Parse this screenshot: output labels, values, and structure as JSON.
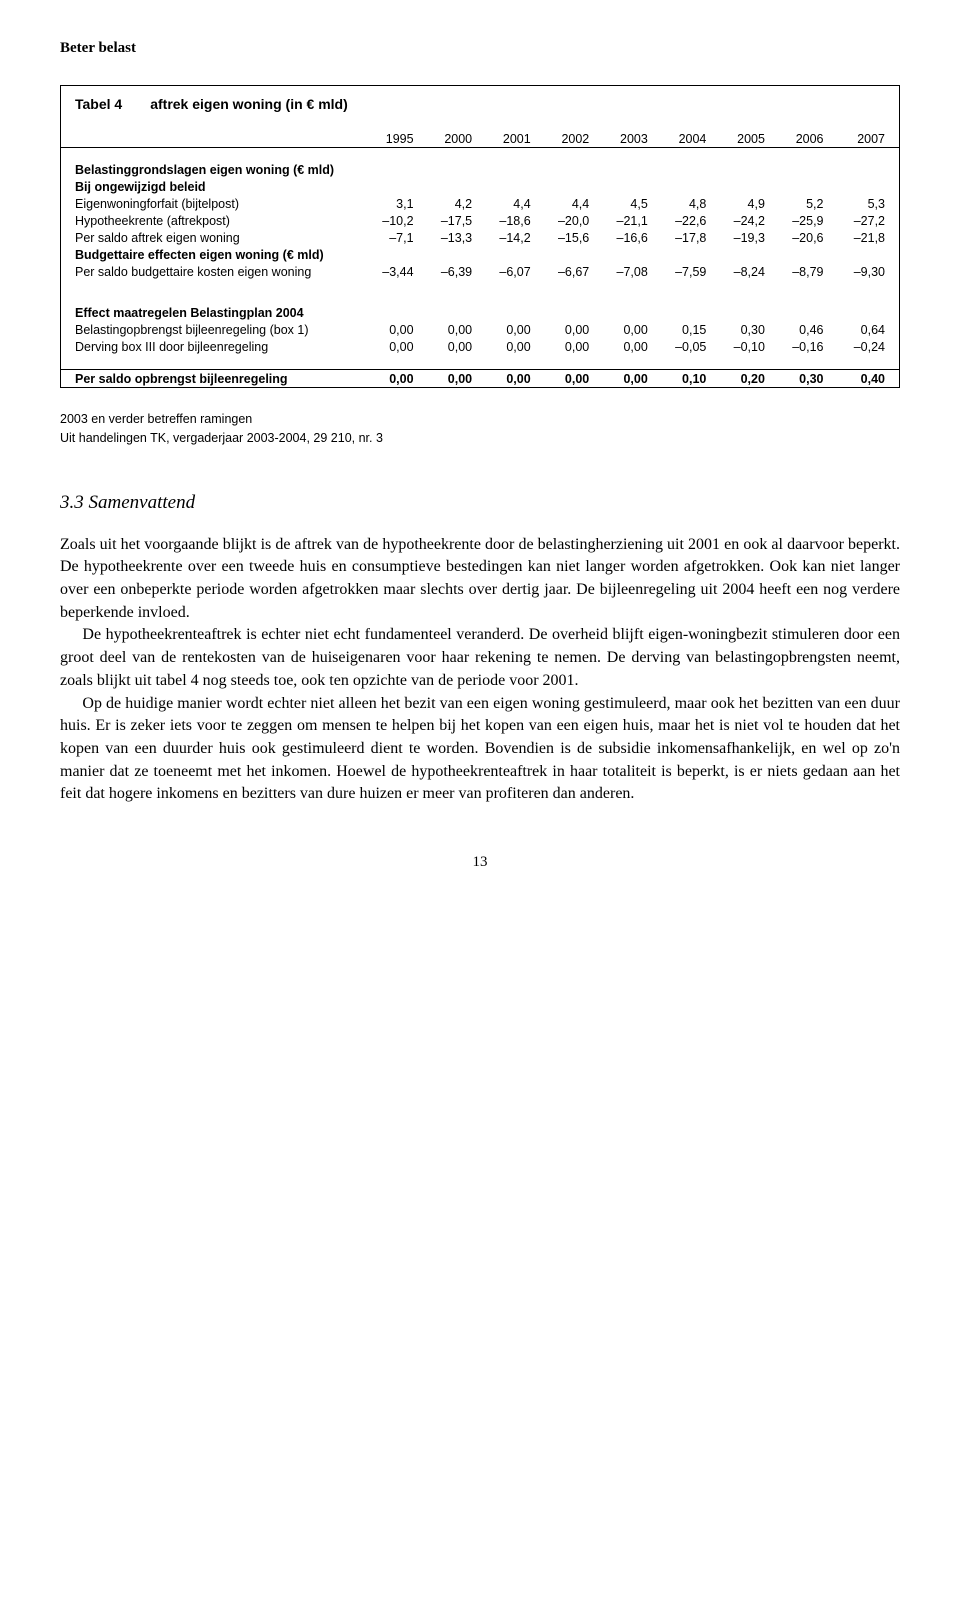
{
  "header": "Beter belast",
  "table": {
    "label": "Tabel 4",
    "caption": "aftrek eigen woning (in € mld)",
    "years": [
      "1995",
      "2000",
      "2001",
      "2002",
      "2003",
      "2004",
      "2005",
      "2006",
      "2007"
    ],
    "sect1_head": "Belastinggrondslagen eigen woning (€ mld)",
    "sect1_sub": "Bij ongewijzigd beleid",
    "rows1": [
      {
        "l": "Eigenwoningforfait (bijtelpost)",
        "v": [
          "3,1",
          "4,2",
          "4,4",
          "4,4",
          "4,5",
          "4,8",
          "4,9",
          "5,2",
          "5,3"
        ]
      },
      {
        "l": "Hypotheekrente (aftrekpost)",
        "v": [
          "–10,2",
          "–17,5",
          "–18,6",
          "–20,0",
          "–21,1",
          "–22,6",
          "–24,2",
          "–25,9",
          "–27,2"
        ]
      },
      {
        "l": "Per saldo aftrek eigen woning",
        "v": [
          "–7,1",
          "–13,3",
          "–14,2",
          "–15,6",
          "–16,6",
          "–17,8",
          "–19,3",
          "–20,6",
          "–21,8"
        ]
      }
    ],
    "sect2_head": "Budgettaire effecten eigen woning (€ mld)",
    "rows2": [
      {
        "l": "Per saldo budgettaire kosten eigen woning",
        "v": [
          "–3,44",
          "–6,39",
          "–6,07",
          "–6,67",
          "–7,08",
          "–7,59",
          "–8,24",
          "–8,79",
          "–9,30"
        ]
      }
    ],
    "sect3_head": "Effect maatregelen Belastingplan 2004",
    "rows3": [
      {
        "l": "Belastingopbrengst bijleenregeling (box 1)",
        "v": [
          "0,00",
          "0,00",
          "0,00",
          "0,00",
          "0,00",
          "0,15",
          "0,30",
          "0,46",
          "0,64"
        ]
      },
      {
        "l": "Derving box III door bijleenregeling",
        "v": [
          "0,00",
          "0,00",
          "0,00",
          "0,00",
          "0,00",
          "–0,05",
          "–0,10",
          "–0,16",
          "–0,24"
        ]
      }
    ],
    "final": {
      "l": "Per saldo opbrengst bijleenregeling",
      "v": [
        "0,00",
        "0,00",
        "0,00",
        "0,00",
        "0,00",
        "0,10",
        "0,20",
        "0,30",
        "0,40"
      ]
    }
  },
  "footnote1": "2003 en verder betreffen ramingen",
  "footnote2": "Uit handelingen TK, vergaderjaar 2003-2004, 29 210, nr. 3",
  "section_heading": "3.3 Samenvattend",
  "para1": "Zoals uit het voorgaande blijkt is de aftrek van de hypotheekrente door de belastingherziening uit 2001 en ook al daarvoor beperkt. De hypotheekrente over een tweede huis en consumptieve bestedingen kan niet langer worden afgetrokken. Ook kan niet langer over een onbeperkte periode worden afgetrokken maar slechts over dertig jaar. De bijleenregeling uit 2004 heeft een nog verdere beperkende invloed.",
  "para2": "De hypotheekrenteaftrek is echter niet echt fundamenteel veranderd. De overheid blijft eigen-woningbezit stimuleren door een groot deel van de rentekosten van de huiseigenaren voor haar rekening te nemen. De derving van belastingopbrengsten neemt, zoals blijkt uit tabel 4 nog steeds toe, ook ten opzichte van de periode voor 2001.",
  "para3": "Op de huidige manier wordt echter niet alleen het bezit van een eigen woning gestimuleerd, maar ook het bezitten van een duur huis. Er is zeker iets voor te zeggen om mensen te helpen bij het kopen van een eigen huis, maar het is niet vol te houden dat het kopen van een duurder huis ook gestimuleerd dient te worden. Bovendien is de subsidie inkomensafhankelijk, en wel op zo'n manier dat ze toeneemt met het inkomen. Hoewel de hypotheekrenteaftrek in haar totaliteit is beperkt, is er niets gedaan aan het feit dat hogere inkomens en bezitters van dure huizen er meer van profiteren dan anderen.",
  "pagenum": "13"
}
